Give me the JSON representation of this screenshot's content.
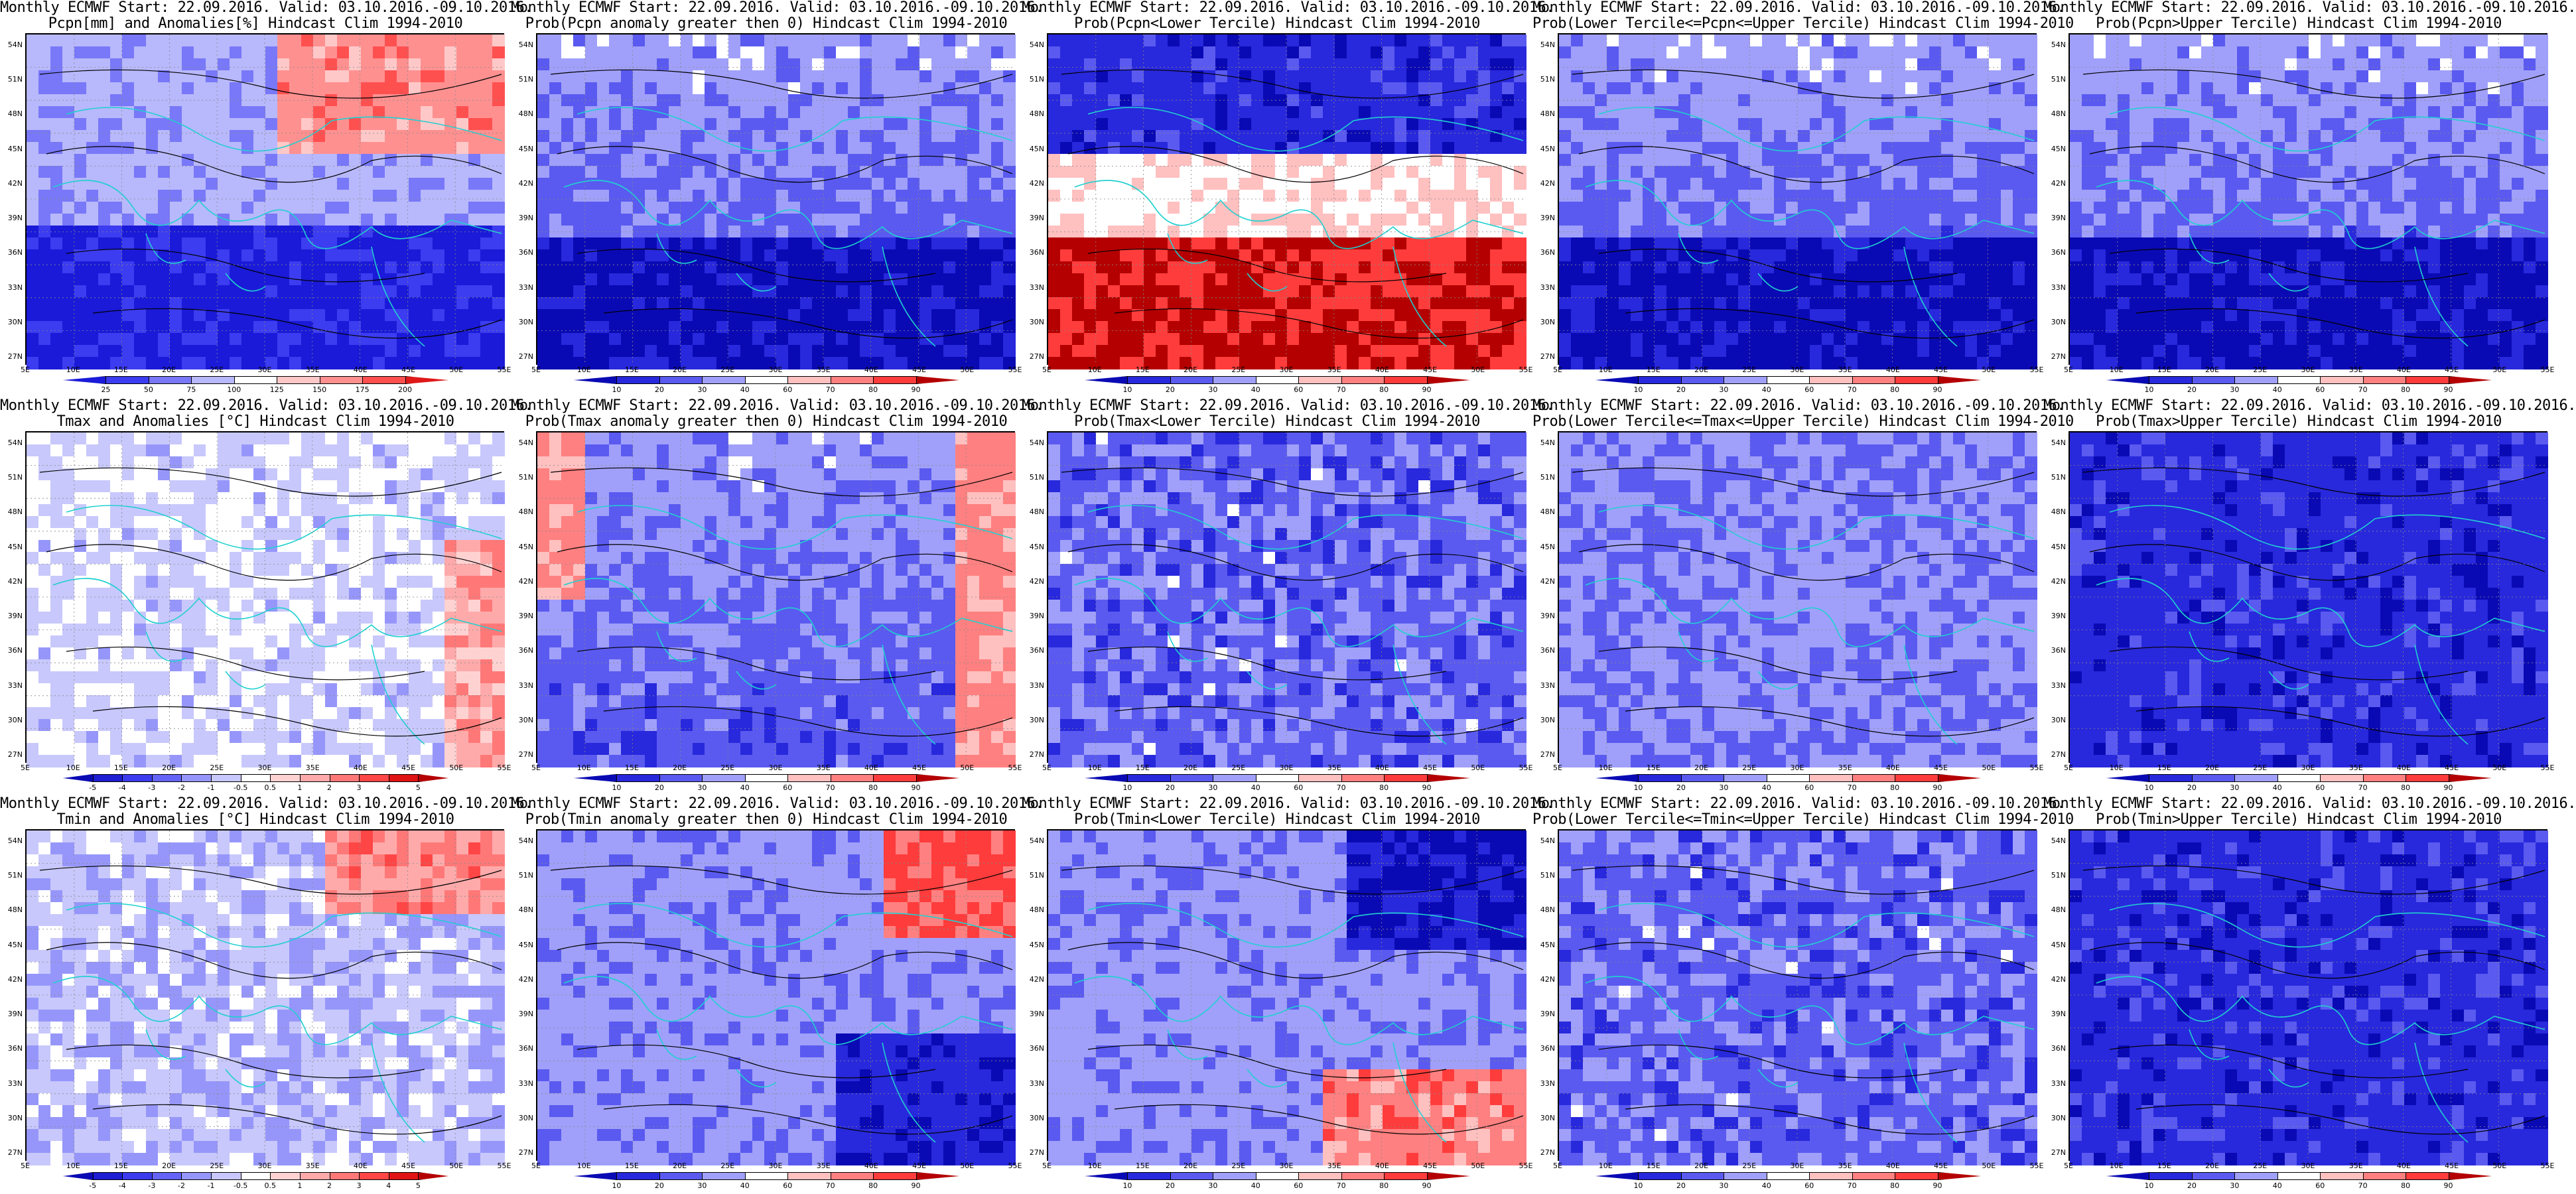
{
  "panels": [
    {
      "id": "pcpn-anom",
      "title1": "Monthly ECMWF Start: 22.09.2016. Valid: 03.10.2016.-09.10.2016.",
      "title2": "Pcpn[mm] and Anomalies[%] Hindcast Clim 1994-2010",
      "scale": "pct",
      "palette": "pcpn-anom",
      "field": "mix-pcpn"
    },
    {
      "id": "pcpn-prob-pos",
      "title1": "Monthly ECMWF Start: 22.09.2016. Valid: 03.10.2016.-09.10.2016.",
      "title2": "Prob(Pcpn anomaly greater then 0) Hindcast Clim 1994-2010",
      "scale": "prob",
      "palette": "prob",
      "field": "blue-south"
    },
    {
      "id": "pcpn-lower",
      "title1": "Monthly ECMWF Start: 22.09.2016. Valid: 03.10.2016.-09.10.2016.",
      "title2": "Prob(Pcpn<Lower Tercile) Hindcast Clim 1994-2010",
      "scale": "prob",
      "palette": "prob",
      "field": "red-south"
    },
    {
      "id": "pcpn-middle",
      "title1": "Monthly ECMWF Start: 22.09.2016. Valid: 03.10.2016.-09.10.2016.",
      "title2": "Prob(Lower Tercile<=Pcpn<=Upper Tercile) Hindcast Clim 1994-2010",
      "scale": "prob",
      "palette": "prob",
      "field": "blue-south"
    },
    {
      "id": "pcpn-upper",
      "title1": "Monthly ECMWF Start: 22.09.2016. Valid: 03.10.2016.-09.10.2016.",
      "title2": "Prob(Pcpn>Upper Tercile) Hindcast Clim 1994-2010",
      "scale": "prob",
      "palette": "prob",
      "field": "blue-south"
    },
    {
      "id": "tmax-anom",
      "title1": "Monthly ECMWF Start: 22.09.2016. Valid: 03.10.2016.-09.10.2016.",
      "title2": "Tmax and Anomalies [°C] Hindcast Clim 1994-2010",
      "scale": "temp",
      "palette": "temp",
      "field": "pale"
    },
    {
      "id": "tmax-prob-pos",
      "title1": "Monthly ECMWF Start: 22.09.2016. Valid: 03.10.2016.-09.10.2016.",
      "title2": "Prob(Tmax anomaly greater then 0) Hindcast Clim 1994-2010",
      "scale": "prob",
      "palette": "prob",
      "field": "pale-mix"
    },
    {
      "id": "tmax-lower",
      "title1": "Monthly ECMWF Start: 22.09.2016. Valid: 03.10.2016.-09.10.2016.",
      "title2": "Prob(Tmax<Lower Tercile) Hindcast Clim 1994-2010",
      "scale": "prob",
      "palette": "prob",
      "field": "mid-blue"
    },
    {
      "id": "tmax-middle",
      "title1": "Monthly ECMWF Start: 22.09.2016. Valid: 03.10.2016.-09.10.2016.",
      "title2": "Prob(Lower Tercile<=Tmax<=Upper Tercile) Hindcast Clim 1994-2010",
      "scale": "prob",
      "palette": "prob",
      "field": "pale-blue"
    },
    {
      "id": "tmax-upper",
      "title1": "Monthly ECMWF Start: 22.09.2016. Valid: 03.10.2016.-09.10.2016.",
      "title2": "Prob(Tmax>Upper Tercile) Hindcast Clim 1994-2010",
      "scale": "prob",
      "palette": "prob",
      "field": "deep-blue"
    },
    {
      "id": "tmin-anom",
      "title1": "Monthly ECMWF Start: 22.09.2016. Valid: 03.10.2016.-09.10.2016.",
      "title2": "Tmin and Anomalies [°C] Hindcast Clim 1994-2010",
      "scale": "temp",
      "palette": "temp",
      "field": "pale-red-ne"
    },
    {
      "id": "tmin-prob-pos",
      "title1": "Monthly ECMWF Start: 22.09.2016. Valid: 03.10.2016.-09.10.2016.",
      "title2": "Prob(Tmin anomaly greater then 0) Hindcast Clim 1994-2010",
      "scale": "prob",
      "palette": "prob",
      "field": "mix-red-ne"
    },
    {
      "id": "tmin-lower",
      "title1": "Monthly ECMWF Start: 22.09.2016. Valid: 03.10.2016.-09.10.2016.",
      "title2": "Prob(Tmin<Lower Tercile) Hindcast Clim 1994-2010",
      "scale": "prob",
      "palette": "prob",
      "field": "blue-ne"
    },
    {
      "id": "tmin-middle",
      "title1": "Monthly ECMWF Start: 22.09.2016. Valid: 03.10.2016.-09.10.2016.",
      "title2": "Prob(Lower Tercile<=Tmin<=Upper Tercile) Hindcast Clim 1994-2010",
      "scale": "prob",
      "palette": "prob",
      "field": "mid-blue"
    },
    {
      "id": "tmin-upper",
      "title1": "Monthly ECMWF Start: 22.09.2016. Valid: 03.10.2016.-09.10.2016.",
      "title2": "Prob(Tmin>Upper Tercile) Hindcast Clim 1994-2010",
      "scale": "prob",
      "palette": "prob",
      "field": "deep-blue"
    }
  ],
  "lat_labels": [
    "54N",
    "51N",
    "48N",
    "45N",
    "42N",
    "39N",
    "36N",
    "33N",
    "30N",
    "27N"
  ],
  "lon_labels": [
    "5E",
    "10E",
    "15E",
    "20E",
    "25E",
    "30E",
    "35E",
    "40E",
    "45E",
    "50E",
    "55E"
  ],
  "scales": {
    "pct": {
      "ticks": [
        "25",
        "50",
        "75",
        "100",
        "125",
        "150",
        "175",
        "200"
      ],
      "colors": [
        "#1a1ad8",
        "#3c3cf0",
        "#7878f8",
        "#b8b8fc",
        "#ffffff",
        "#ffc8c8",
        "#ff9090",
        "#ff5050",
        "#e01818"
      ]
    },
    "prob": {
      "ticks": [
        "10",
        "20",
        "30",
        "40",
        "60",
        "70",
        "80",
        "90"
      ],
      "colors": [
        "#0a0ab4",
        "#2828dc",
        "#5a5af0",
        "#a0a0fa",
        "#ffffff",
        "#ffc0c0",
        "#ff8080",
        "#ff3c3c",
        "#b40000"
      ]
    },
    "temp": {
      "ticks": [
        "-5",
        "-4",
        "-3",
        "-2",
        "-1",
        "-0.5",
        "0.5",
        "1",
        "2",
        "3",
        "4",
        "5"
      ],
      "colors": [
        "#0a0ab4",
        "#1e1ed2",
        "#3c3cee",
        "#6464f6",
        "#9696fa",
        "#c8c8fc",
        "#ffffff",
        "#ffd2d2",
        "#ffaaaa",
        "#ff7878",
        "#ff4646",
        "#e01414",
        "#b40000"
      ]
    }
  }
}
